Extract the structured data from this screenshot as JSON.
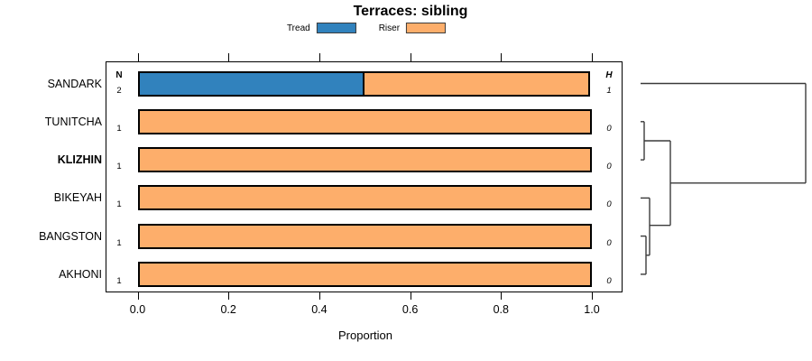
{
  "title": "Terraces: sibling",
  "legend": {
    "items": [
      {
        "label": "Tread",
        "color": "#3182BD"
      },
      {
        "label": "Riser",
        "color": "#FDAE6B"
      }
    ]
  },
  "columns": {
    "n_header": "N",
    "h_header": "H"
  },
  "rows": [
    {
      "label": "SANDARK",
      "bold": false,
      "n": "2",
      "h": "1",
      "tread": 0.5,
      "riser": 0.5
    },
    {
      "label": "TUNITCHA",
      "bold": false,
      "n": "1",
      "h": "0",
      "tread": 0.0,
      "riser": 1.0
    },
    {
      "label": "KLIZHIN",
      "bold": true,
      "n": "1",
      "h": "0",
      "tread": 0.0,
      "riser": 1.0
    },
    {
      "label": "BIKEYAH",
      "bold": false,
      "n": "1",
      "h": "0",
      "tread": 0.0,
      "riser": 1.0
    },
    {
      "label": "BANGSTON",
      "bold": false,
      "n": "1",
      "h": "0",
      "tread": 0.0,
      "riser": 1.0
    },
    {
      "label": "AKHONI",
      "bold": false,
      "n": "1",
      "h": "0",
      "tread": 0.0,
      "riser": 1.0
    }
  ],
  "x_axis": {
    "ticks": [
      "0.0",
      "0.2",
      "0.4",
      "0.6",
      "0.8",
      "1.0"
    ],
    "label": "Proportion"
  },
  "chart_data": {
    "type": "bar",
    "orientation": "horizontal",
    "stacked": true,
    "title": "Terraces: sibling",
    "xlabel": "Proportion",
    "ylabel": "",
    "xlim": [
      0.0,
      1.0
    ],
    "xticks": [
      0.0,
      0.2,
      0.4,
      0.6,
      0.8,
      1.0
    ],
    "grid": false,
    "legend_position": "top",
    "categories": [
      "SANDARK",
      "TUNITCHA",
      "KLIZHIN",
      "BIKEYAH",
      "BANGSTON",
      "AKHONI"
    ],
    "series": [
      {
        "name": "Tread",
        "color": "#3182BD",
        "values": [
          0.5,
          0.0,
          0.0,
          0.0,
          0.0,
          0.0
        ]
      },
      {
        "name": "Riser",
        "color": "#FDAE6B",
        "values": [
          0.5,
          1.0,
          1.0,
          1.0,
          1.0,
          1.0
        ]
      }
    ],
    "annotations": {
      "N": [
        2,
        1,
        1,
        1,
        1,
        1
      ],
      "H": [
        1,
        0,
        0,
        0,
        0,
        0
      ]
    },
    "highlighted_category": "KLIZHIN",
    "right_panel": "dendrogram"
  },
  "dendrogram": {
    "structure": "(SANDARK,((TUNITCHA,KLIZHIN),(BIKEYAH,(BANGSTON,AKHONI))))",
    "line_color": "#3a3a3a",
    "segments": [
      [
        10,
        42.5,
        193,
        42.5
      ],
      [
        193,
        42.5,
        193,
        152.8
      ],
      [
        43,
        152.8,
        193,
        152.8
      ],
      [
        43,
        106.0,
        43,
        199.7
      ],
      [
        14,
        106.0,
        43,
        106.0
      ],
      [
        14,
        84.8,
        14,
        127.1
      ],
      [
        10,
        84.8,
        14,
        84.8
      ],
      [
        10,
        127.1,
        14,
        127.1
      ],
      [
        20,
        199.7,
        43,
        199.7
      ],
      [
        20,
        169.4,
        20,
        232.8
      ],
      [
        10,
        169.4,
        20,
        169.4
      ],
      [
        16,
        232.8,
        20,
        232.8
      ],
      [
        16,
        211.6,
        16,
        253.9
      ],
      [
        10,
        211.6,
        16,
        211.6
      ],
      [
        10,
        253.9,
        16,
        253.9
      ]
    ]
  }
}
